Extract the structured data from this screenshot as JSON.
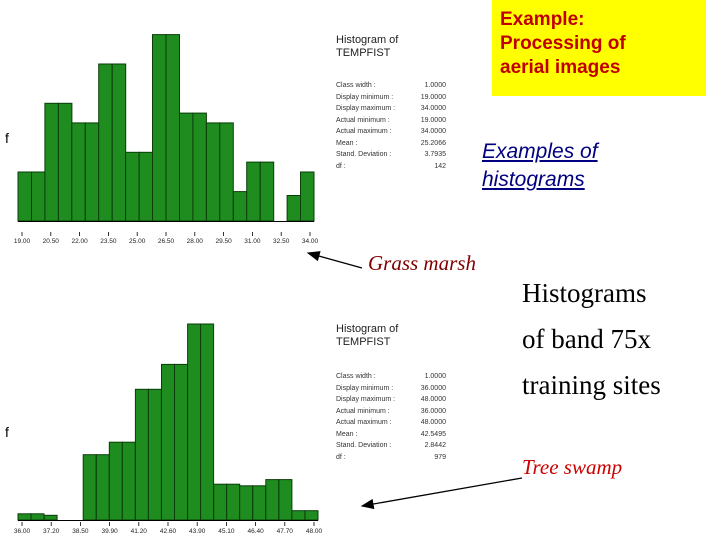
{
  "slide": {
    "title_lines": [
      "Example:",
      "Processing of",
      "aerial images"
    ],
    "examples_lines": [
      "Examples of",
      "histograms"
    ],
    "main_lines": [
      "Histograms",
      "of band 75x",
      "training sites"
    ],
    "grass_label": "Grass marsh",
    "tree_label": "Tree swamp",
    "colors": {
      "title_bg": "#ffff00",
      "title_text": "#c00000",
      "bar_fill": "#1f8c1f",
      "bar_stroke": "#0a3d0a"
    }
  },
  "histograms": [
    {
      "f_label": "f",
      "header_lines": [
        "Histogram of",
        "TEMPFIST"
      ],
      "stats": [
        {
          "label": "Class width :",
          "value": "1.0000"
        },
        {
          "label": "Display minimum :",
          "value": "19.0000"
        },
        {
          "label": "Display maximum :",
          "value": "34.0000"
        },
        {
          "label": "Actual minimum :",
          "value": "19.0000"
        },
        {
          "label": "Actual maximum :",
          "value": "34.0000"
        },
        {
          "label": "Mean :",
          "value": "25.2066"
        },
        {
          "label": "Stand. Deviation :",
          "value": "3.7935"
        },
        {
          "label": "df :",
          "value": "142"
        }
      ]
    },
    {
      "f_label": "f",
      "header_lines": [
        "Histogram of",
        "TEMPFIST"
      ],
      "stats": [
        {
          "label": "Class width :",
          "value": "1.0000"
        },
        {
          "label": "Display minimum :",
          "value": "36.0000"
        },
        {
          "label": "Display maximum :",
          "value": "48.0000"
        },
        {
          "label": "Actual minimum :",
          "value": "36.0000"
        },
        {
          "label": "Actual maximum :",
          "value": "48.0000"
        },
        {
          "label": "Mean :",
          "value": "42.5495"
        },
        {
          "label": "Stand. Deviation :",
          "value": "2.8442"
        },
        {
          "label": "df :",
          "value": "979"
        }
      ]
    }
  ],
  "chart_data": [
    {
      "type": "bar",
      "x_ticks": [
        "19.00",
        "20.50",
        "22.00",
        "23.50",
        "25.00",
        "26.50",
        "28.00",
        "29.50",
        "31.00",
        "32.50",
        "34.00"
      ],
      "values": [
        2.5,
        2.5,
        6,
        6,
        5,
        5,
        8,
        8,
        3.5,
        3.5,
        9.5,
        9.5,
        5.5,
        5.5,
        5,
        5,
        1.5,
        3,
        3,
        0,
        1.3,
        2.5
      ],
      "ylim": [
        0,
        10.5
      ]
    },
    {
      "type": "bar",
      "x_ticks": [
        "36.00",
        "37.20",
        "38.50",
        "39.90",
        "41.20",
        "42.60",
        "43.90",
        "45.10",
        "46.40",
        "47.70",
        "48.00"
      ],
      "values": [
        0.4,
        0.4,
        0.3,
        0,
        0,
        4.2,
        4.2,
        5,
        5,
        8.4,
        8.4,
        10,
        10,
        12.6,
        12.6,
        2.3,
        2.3,
        2.2,
        2.2,
        2.6,
        2.6,
        0.6,
        0.6
      ],
      "ylim": [
        0,
        13.5
      ]
    }
  ]
}
